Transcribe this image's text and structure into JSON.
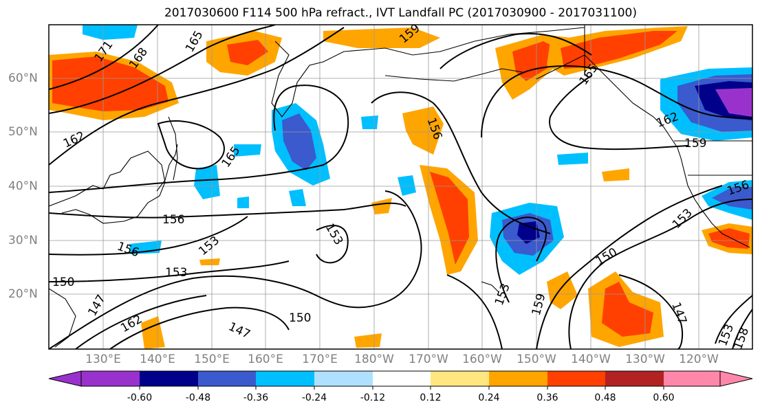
{
  "title": "2017030600 F114 500 hPa refract., IVT Landfall PC (2017030900 - 2017031100)",
  "lat_labels": [
    "60°N",
    "50°N",
    "40°N",
    "30°N",
    "20°N"
  ],
  "lon_labels": [
    "130°E",
    "140°E",
    "150°E",
    "160°E",
    "170°E",
    "180°W",
    "170°W",
    "160°W",
    "150°W",
    "140°W",
    "130°W",
    "120°W"
  ],
  "colorbar": {
    "ticks": [
      "-0.60",
      "-0.48",
      "-0.36",
      "-0.24",
      "-0.12",
      "0.12",
      "0.24",
      "0.36",
      "0.48",
      "0.60"
    ],
    "colors": [
      "#9932cc",
      "#00008b",
      "#3a5acd",
      "#00bfff",
      "#b0e0ff",
      "#ffffff",
      "#ffe680",
      "#ffa500",
      "#ff4000",
      "#b22222",
      "#ff88aa"
    ]
  },
  "contour_labels": [
    "171",
    "168",
    "165",
    "162",
    "165",
    "159",
    "156",
    "165",
    "162",
    "159",
    "156",
    "156",
    "153",
    "153",
    "156",
    "153",
    "150",
    "150",
    "147",
    "162",
    "147",
    "153",
    "159",
    "150",
    "153",
    "147",
    "153",
    "158"
  ]
}
